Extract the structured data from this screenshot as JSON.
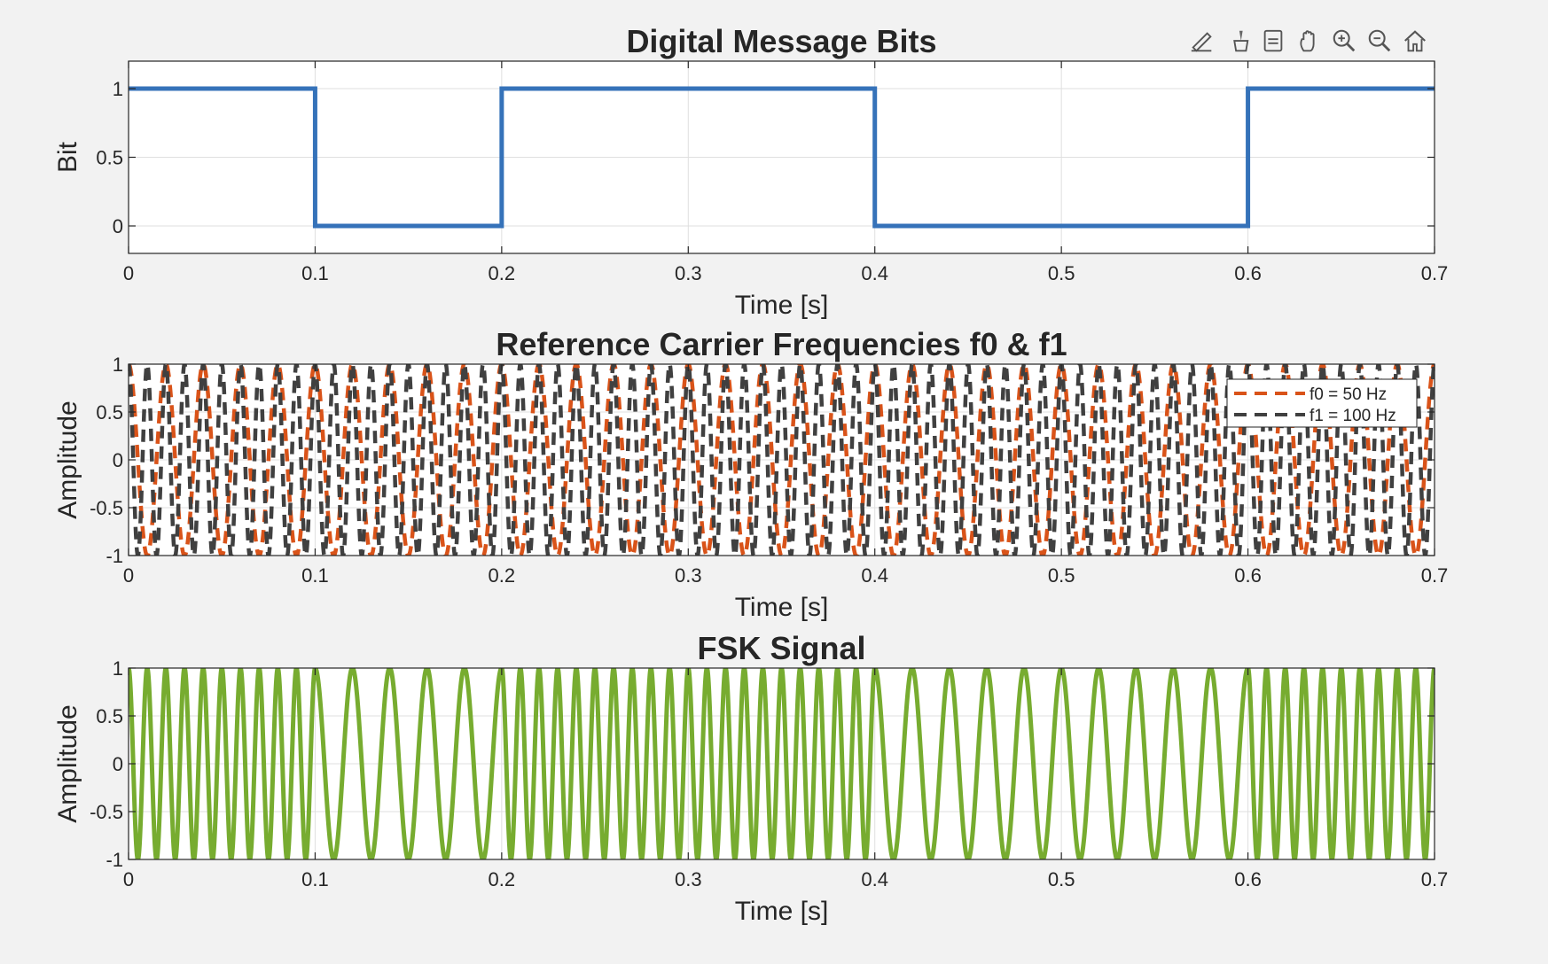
{
  "toolbar": {
    "buttons": [
      "edit-plot-icon",
      "brush-icon",
      "data-tips-icon",
      "pan-icon",
      "zoom-in-icon",
      "zoom-out-icon",
      "home-icon"
    ]
  },
  "chart_data": [
    {
      "type": "line",
      "title": "Digital Message Bits",
      "xlabel": "Time [s]",
      "ylabel": "Bit",
      "xlim": [
        0,
        0.7
      ],
      "ylim": [
        -0.2,
        1.2
      ],
      "xticks": [
        "0",
        "0.1",
        "0.2",
        "0.3",
        "0.4",
        "0.5",
        "0.6",
        "0.7"
      ],
      "yticks": [
        "0",
        "0.5",
        "1"
      ],
      "grid": true,
      "bits": [
        1,
        0,
        1,
        1,
        0,
        0,
        1
      ],
      "bit_duration": 0.1,
      "series": [
        {
          "values_step": [
            1,
            0,
            1,
            1,
            0,
            0,
            1
          ],
          "color": "#3572b9",
          "style": "solid"
        }
      ]
    },
    {
      "type": "line",
      "title": "Reference Carrier Frequencies f0 & f1",
      "xlabel": "Time [s]",
      "ylabel": "Amplitude",
      "xlim": [
        0,
        0.7
      ],
      "ylim": [
        -1,
        1
      ],
      "xticks": [
        "0",
        "0.1",
        "0.2",
        "0.3",
        "0.4",
        "0.5",
        "0.6",
        "0.7"
      ],
      "yticks": [
        "-1",
        "-0.5",
        "0",
        "0.5",
        "1"
      ],
      "grid": true,
      "legend_position": "top-right",
      "series": [
        {
          "name": "f0 = 50 Hz",
          "frequency_hz": 50,
          "color": "#d95319",
          "style": "dashed"
        },
        {
          "name": "f1 = 100 Hz",
          "frequency_hz": 100,
          "color": "#404040",
          "style": "dashed"
        }
      ]
    },
    {
      "type": "line",
      "title": "FSK Signal",
      "xlabel": "Time [s]",
      "ylabel": "Amplitude",
      "xlim": [
        0,
        0.7
      ],
      "ylim": [
        -1,
        1
      ],
      "xticks": [
        "0",
        "0.1",
        "0.2",
        "0.3",
        "0.4",
        "0.5",
        "0.6",
        "0.7"
      ],
      "yticks": [
        "-1",
        "-0.5",
        "0",
        "0.5",
        "1"
      ],
      "grid": true,
      "bits": [
        1,
        0,
        1,
        1,
        0,
        0,
        1
      ],
      "bit_duration": 0.1,
      "frequency_for_bit_1_hz": 100,
      "frequency_for_bit_0_hz": 50,
      "series": [
        {
          "color": "#77ac30",
          "style": "solid"
        }
      ]
    }
  ]
}
